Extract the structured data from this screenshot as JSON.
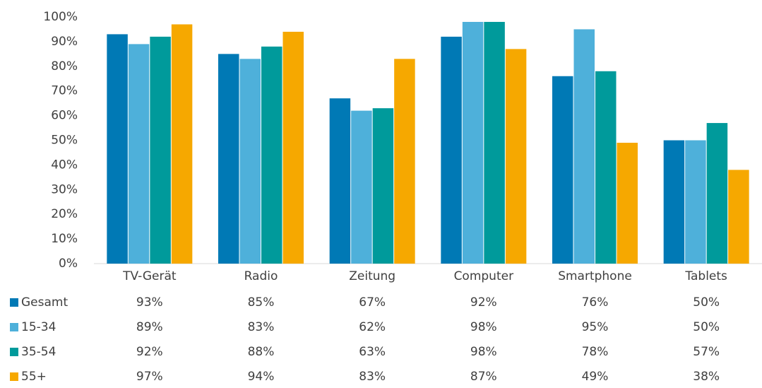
{
  "chart_data": {
    "type": "bar",
    "categories": [
      "TV-Gerät",
      "Radio",
      "Zeitung",
      "Computer",
      "Smartphone",
      "Tablets"
    ],
    "series": [
      {
        "name": "Gesamt",
        "color": "#0079b5",
        "values": [
          93,
          85,
          67,
          92,
          76,
          50
        ],
        "value_labels": [
          "93%",
          "85%",
          "67%",
          "92%",
          "76%",
          "50%"
        ]
      },
      {
        "name": "15-34",
        "color": "#4eb0da",
        "values": [
          89,
          83,
          62,
          98,
          95,
          50
        ],
        "value_labels": [
          "89%",
          "83%",
          "62%",
          "98%",
          "95%",
          "50%"
        ]
      },
      {
        "name": "35-54",
        "color": "#009a9b",
        "values": [
          92,
          88,
          63,
          98,
          78,
          57
        ],
        "value_labels": [
          "92%",
          "88%",
          "63%",
          "98%",
          "78%",
          "57%"
        ]
      },
      {
        "name": "55+",
        "color": "#f6a800",
        "values": [
          97,
          94,
          83,
          87,
          49,
          38
        ],
        "value_labels": [
          "97%",
          "94%",
          "83%",
          "87%",
          "49%",
          "38%"
        ]
      }
    ],
    "ylim": [
      0,
      100
    ],
    "yticks": [
      {
        "value": 0,
        "label": "0%"
      },
      {
        "value": 10,
        "label": "10%"
      },
      {
        "value": 20,
        "label": "20%"
      },
      {
        "value": 30,
        "label": "30%"
      },
      {
        "value": 40,
        "label": "40%"
      },
      {
        "value": 50,
        "label": "50%"
      },
      {
        "value": 60,
        "label": "60%"
      },
      {
        "value": 70,
        "label": "70%"
      },
      {
        "value": 80,
        "label": "80%"
      },
      {
        "value": 90,
        "label": "90%"
      },
      {
        "value": 100,
        "label": "100%"
      }
    ],
    "grid": false
  }
}
